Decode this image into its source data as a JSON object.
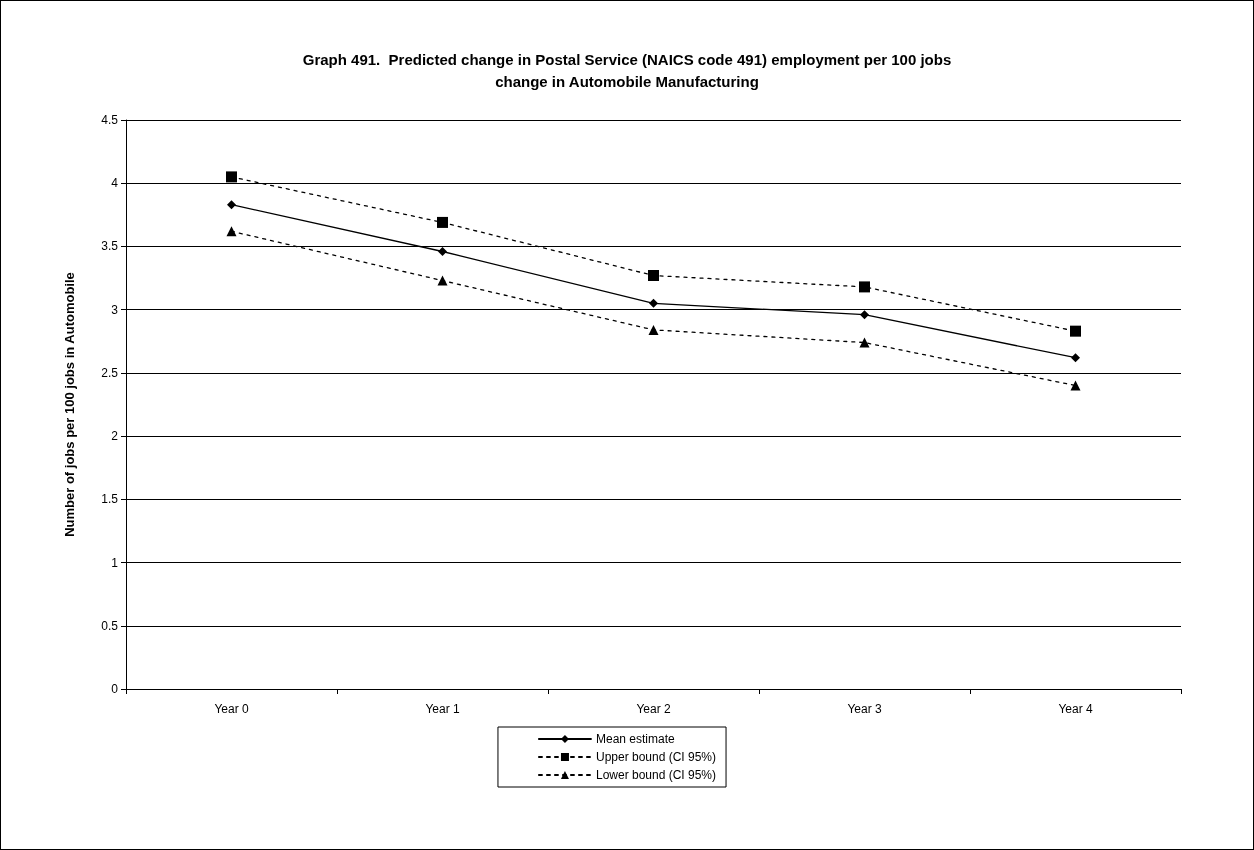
{
  "chart_data": {
    "type": "line",
    "title": "Graph 491.  Predicted change in Postal Service (NAICS code 491) employment per 100 jobs\nchange in Automobile Manufacturing",
    "ylabel": "Number of jobs per 100 jobs in Automobile",
    "categories": [
      "Year 0",
      "Year 1",
      "Year 2",
      "Year 3",
      "Year 4"
    ],
    "series": [
      {
        "name": "Mean estimate",
        "color": "#000000",
        "marker": "diamond",
        "line_style": "solid",
        "values": [
          3.83,
          3.46,
          3.05,
          2.96,
          2.62
        ]
      },
      {
        "name": "Upper bound (CI 95%)",
        "color": "#000000",
        "marker": "square",
        "line_style": "dotted",
        "values": [
          4.05,
          3.69,
          3.27,
          3.18,
          2.83
        ]
      },
      {
        "name": "Lower bound (CI 95%)",
        "color": "#000000",
        "marker": "triangle",
        "line_style": "dotted",
        "values": [
          3.62,
          3.23,
          2.84,
          2.74,
          2.4
        ]
      }
    ],
    "ylim": [
      0,
      4.5
    ],
    "yticks": [
      0,
      0.5,
      1,
      1.5,
      2,
      2.5,
      3,
      3.5,
      4,
      4.5
    ],
    "grid": "y",
    "legend": "bottom"
  }
}
